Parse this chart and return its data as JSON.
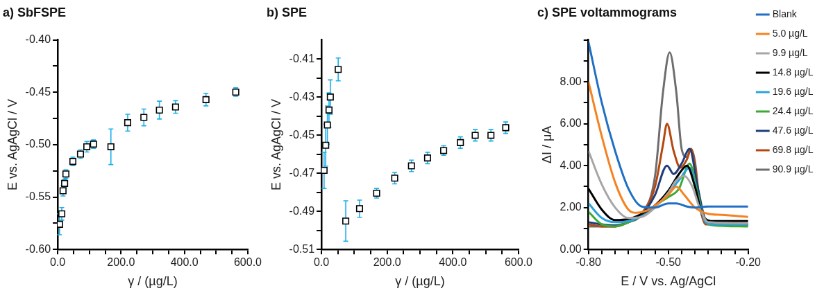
{
  "chart_data": [
    {
      "type": "scatter",
      "title": "a) SbFSPE",
      "xlabel": "γ / (µg/L)",
      "ylabel": "E vs. AgAgCl / V",
      "marker": "square",
      "xlim": [
        0,
        600
      ],
      "xticks": [
        {
          "value": 0,
          "label": "0.0"
        },
        {
          "value": 50,
          "label": null
        },
        {
          "value": 100,
          "label": null
        },
        {
          "value": 150,
          "label": null
        },
        {
          "value": 200,
          "label": "200.0"
        },
        {
          "value": 250,
          "label": null
        },
        {
          "value": 300,
          "label": null
        },
        {
          "value": 350,
          "label": null
        },
        {
          "value": 400,
          "label": "400.0"
        },
        {
          "value": 450,
          "label": null
        },
        {
          "value": 500,
          "label": null
        },
        {
          "value": 550,
          "label": null
        },
        {
          "value": 600,
          "label": "600.0"
        }
      ],
      "ylim": [
        -0.6,
        -0.4
      ],
      "yticks": [
        {
          "value": -0.6,
          "label": "-0.60"
        },
        {
          "value": -0.575,
          "label": null
        },
        {
          "value": -0.55,
          "label": "-0.55"
        },
        {
          "value": -0.525,
          "label": null
        },
        {
          "value": -0.5,
          "label": "-0.50"
        },
        {
          "value": -0.475,
          "label": null
        },
        {
          "value": -0.45,
          "label": "-0.45"
        },
        {
          "value": -0.425,
          "label": null
        },
        {
          "value": -0.4,
          "label": "-0.40"
        }
      ],
      "x": [
        6,
        13,
        17,
        22,
        26,
        48,
        72,
        92,
        113,
        168,
        221,
        272,
        321,
        372,
        468,
        562
      ],
      "series": [
        {
          "color": "#000000",
          "values": [
            -0.576,
            -0.566,
            -0.544,
            -0.537,
            -0.528,
            -0.516,
            -0.509,
            -0.502,
            -0.4995,
            -0.502,
            -0.479,
            -0.474,
            -0.467,
            -0.464,
            -0.457,
            -0.4498
          ],
          "errors": [
            0.01,
            0.006,
            0.005,
            0.004,
            0.004,
            0.004,
            0.004,
            0.005,
            0.004,
            0.017,
            0.008,
            0.008,
            0.0085,
            0.006,
            0.006,
            0.004
          ]
        }
      ]
    },
    {
      "type": "scatter",
      "title": "b) SPE",
      "xlabel": "γ / (µg/L)",
      "ylabel": "E vs. AgAgCl / V",
      "marker": "square",
      "xlim": [
        0,
        600
      ],
      "xticks": [
        {
          "value": 0,
          "label": "0.0"
        },
        {
          "value": 50,
          "label": null
        },
        {
          "value": 100,
          "label": null
        },
        {
          "value": 150,
          "label": null
        },
        {
          "value": 200,
          "label": "200.0"
        },
        {
          "value": 250,
          "label": null
        },
        {
          "value": 300,
          "label": null
        },
        {
          "value": 350,
          "label": null
        },
        {
          "value": 400,
          "label": "400.0"
        },
        {
          "value": 450,
          "label": null
        },
        {
          "value": 500,
          "label": null
        },
        {
          "value": 550,
          "label": null
        },
        {
          "value": 600,
          "label": "600.0"
        }
      ],
      "ylim": [
        -0.51,
        -0.4
      ],
      "yticks": [
        {
          "value": -0.51,
          "label": "-0.51"
        },
        {
          "value": -0.5,
          "label": null
        },
        {
          "value": -0.49,
          "label": "-0.49"
        },
        {
          "value": -0.48,
          "label": null
        },
        {
          "value": -0.47,
          "label": "-0.47"
        },
        {
          "value": -0.46,
          "label": null
        },
        {
          "value": -0.45,
          "label": "-0.45"
        },
        {
          "value": -0.44,
          "label": null
        },
        {
          "value": -0.43,
          "label": "-0.43"
        },
        {
          "value": -0.42,
          "label": null
        },
        {
          "value": -0.41,
          "label": "-0.41"
        }
      ],
      "x": [
        8,
        13,
        18,
        23,
        27,
        51,
        74,
        116,
        168,
        223,
        274,
        323,
        372,
        423,
        468,
        516,
        561
      ],
      "series": [
        {
          "color": "#000000",
          "values": [
            -0.4685,
            -0.4553,
            -0.4447,
            -0.4368,
            -0.43,
            -0.4155,
            -0.4951,
            -0.4886,
            -0.4805,
            -0.4726,
            -0.4661,
            -0.462,
            -0.4581,
            -0.4539,
            -0.4501,
            -0.4501,
            -0.4461
          ],
          "errors": [
            0.0095,
            0.011,
            0.01,
            0.009,
            0.009,
            0.006,
            0.0106,
            0.0045,
            0.0025,
            0.003,
            0.003,
            0.003,
            0.0025,
            0.003,
            0.003,
            0.003,
            0.003
          ]
        }
      ]
    },
    {
      "type": "line",
      "title": "c) SPE voltammograms",
      "xlabel": "E / V vs. Ag/AgCl",
      "ylabel": "ΔI / μA",
      "legend": "right",
      "xlim": [
        -0.8,
        -0.2
      ],
      "xticks": [
        {
          "value": -0.8,
          "label": "-0.80"
        },
        {
          "value": -0.75,
          "label": null
        },
        {
          "value": -0.7,
          "label": null
        },
        {
          "value": -0.65,
          "label": null
        },
        {
          "value": -0.6,
          "label": null
        },
        {
          "value": -0.55,
          "label": null
        },
        {
          "value": -0.5,
          "label": "-0.50"
        },
        {
          "value": -0.45,
          "label": null
        },
        {
          "value": -0.4,
          "label": null
        },
        {
          "value": -0.35,
          "label": null
        },
        {
          "value": -0.3,
          "label": null
        },
        {
          "value": -0.25,
          "label": null
        },
        {
          "value": -0.2,
          "label": "-0.20"
        }
      ],
      "ylim": [
        0,
        10
      ],
      "yticks": [
        {
          "value": 0,
          "label": "0.00"
        },
        {
          "value": 1,
          "label": null
        },
        {
          "value": 2,
          "label": "2.00"
        },
        {
          "value": 3,
          "label": null
        },
        {
          "value": 4,
          "label": "4.00"
        },
        {
          "value": 5,
          "label": null
        },
        {
          "value": 6,
          "label": "6.00"
        },
        {
          "value": 7,
          "label": null
        },
        {
          "value": 8,
          "label": "8.00"
        },
        {
          "value": 9,
          "label": null
        },
        {
          "value": 10,
          "label": null
        }
      ],
      "series": [
        {
          "name": "Blank",
          "color": "#1f6fc5",
          "x": [
            -0.8,
            -0.75,
            -0.7,
            -0.65,
            -0.6,
            -0.55,
            -0.5,
            -0.47,
            -0.43,
            -0.4,
            -0.35,
            -0.3,
            -0.2
          ],
          "values": [
            9.9,
            7.0,
            4.7,
            2.9,
            2.05,
            2.0,
            2.2,
            2.2,
            2.05,
            2.0,
            2.05,
            2.05,
            2.05
          ]
        },
        {
          "name": "5.0 µg/L",
          "color": "#f58220",
          "x": [
            -0.8,
            -0.75,
            -0.7,
            -0.65,
            -0.62,
            -0.58,
            -0.55,
            -0.5,
            -0.47,
            -0.44,
            -0.4,
            -0.35,
            -0.3,
            -0.2
          ],
          "values": [
            8.0,
            5.4,
            3.2,
            1.9,
            1.75,
            1.85,
            2.1,
            2.6,
            3.0,
            2.6,
            2.0,
            1.7,
            1.65,
            1.55
          ]
        },
        {
          "name": "9.9 µg/L",
          "color": "#a6a6a6",
          "x": [
            -0.8,
            -0.75,
            -0.7,
            -0.65,
            -0.6,
            -0.55,
            -0.5,
            -0.47,
            -0.44,
            -0.41,
            -0.38,
            -0.35,
            -0.2
          ],
          "values": [
            4.7,
            3.1,
            2.0,
            1.5,
            1.55,
            2.0,
            2.7,
            3.3,
            3.5,
            3.0,
            1.9,
            1.3,
            1.25
          ]
        },
        {
          "name": "14.8 µg/L",
          "color": "#000000",
          "x": [
            -0.8,
            -0.75,
            -0.7,
            -0.65,
            -0.6,
            -0.55,
            -0.5,
            -0.46,
            -0.43,
            -0.4,
            -0.37,
            -0.33,
            -0.2
          ],
          "values": [
            2.9,
            1.9,
            1.4,
            1.45,
            1.7,
            2.1,
            2.8,
            3.6,
            4.0,
            3.0,
            1.6,
            1.35,
            1.35
          ]
        },
        {
          "name": "19.6 µg/L",
          "color": "#29a3e0",
          "x": [
            -0.8,
            -0.75,
            -0.7,
            -0.65,
            -0.6,
            -0.55,
            -0.5,
            -0.46,
            -0.42,
            -0.39,
            -0.36,
            -0.33,
            -0.2
          ],
          "values": [
            2.2,
            1.5,
            1.3,
            1.35,
            1.6,
            2.1,
            2.7,
            3.3,
            3.9,
            2.5,
            1.3,
            1.2,
            1.2
          ]
        },
        {
          "name": "24.4 µg/L",
          "color": "#3aaa35",
          "x": [
            -0.8,
            -0.75,
            -0.7,
            -0.65,
            -0.6,
            -0.55,
            -0.5,
            -0.46,
            -0.42,
            -0.39,
            -0.36,
            -0.33,
            -0.2
          ],
          "values": [
            1.8,
            1.2,
            1.1,
            1.3,
            1.6,
            2.1,
            2.5,
            2.9,
            4.1,
            2.7,
            1.3,
            1.15,
            1.1
          ]
        },
        {
          "name": "47.6 µg/L",
          "color": "#1f3d7a",
          "x": [
            -0.8,
            -0.75,
            -0.7,
            -0.65,
            -0.6,
            -0.55,
            -0.505,
            -0.48,
            -0.45,
            -0.42,
            -0.39,
            -0.36,
            -0.33,
            -0.2
          ],
          "values": [
            1.3,
            1.2,
            1.15,
            1.3,
            1.65,
            2.6,
            4.0,
            3.6,
            4.1,
            4.8,
            3.0,
            1.4,
            1.2,
            1.2
          ]
        },
        {
          "name": "69.8 µg/L",
          "color": "#b5470f",
          "x": [
            -0.8,
            -0.75,
            -0.7,
            -0.65,
            -0.6,
            -0.55,
            -0.52,
            -0.505,
            -0.48,
            -0.455,
            -0.43,
            -0.415,
            -0.4,
            -0.38,
            -0.36,
            -0.2
          ],
          "values": [
            1.2,
            1.1,
            1.1,
            1.3,
            1.7,
            3.0,
            5.0,
            6.0,
            4.7,
            3.9,
            4.3,
            4.8,
            4.0,
            2.0,
            1.2,
            1.2
          ]
        },
        {
          "name": "90.9 µg/L",
          "color": "#6e6e6e",
          "x": [
            -0.8,
            -0.75,
            -0.7,
            -0.65,
            -0.6,
            -0.55,
            -0.52,
            -0.495,
            -0.47,
            -0.45,
            -0.43,
            -0.415,
            -0.4,
            -0.38,
            -0.36,
            -0.2
          ],
          "values": [
            1.1,
            1.1,
            1.1,
            1.3,
            1.7,
            3.5,
            7.5,
            9.4,
            7.5,
            4.8,
            4.4,
            4.8,
            4.2,
            2.0,
            1.3,
            1.2
          ]
        }
      ]
    }
  ]
}
